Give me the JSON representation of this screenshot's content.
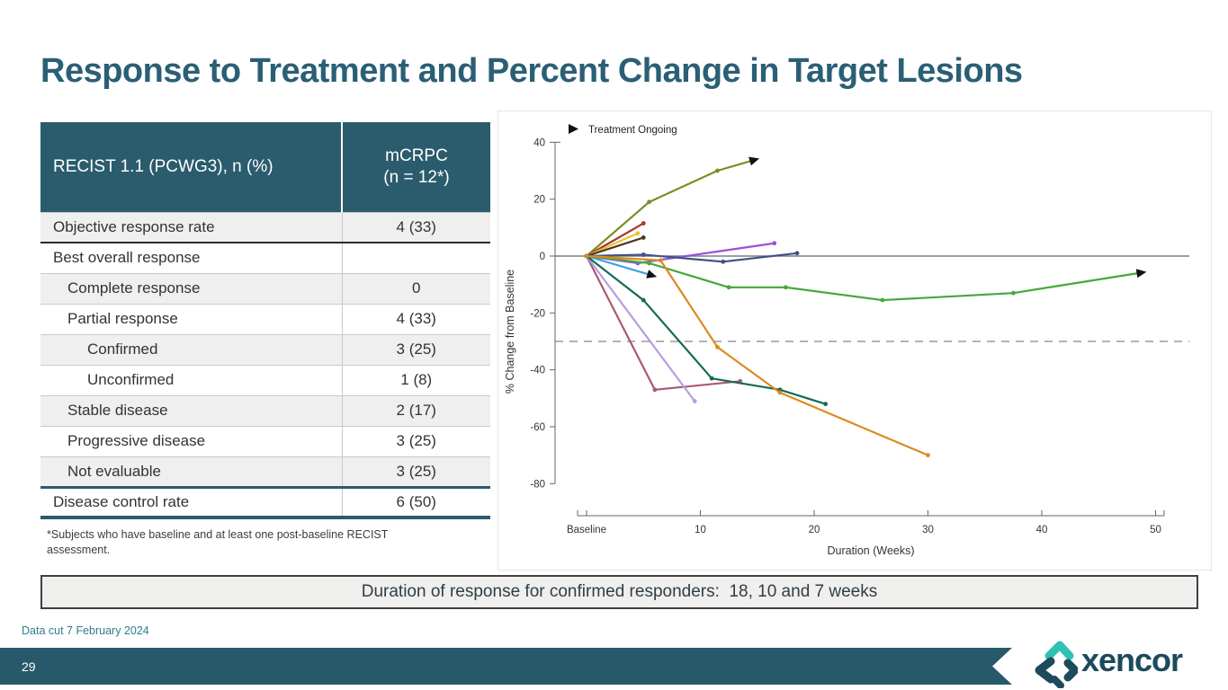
{
  "slide": {
    "title": "Response to Treatment and Percent Change in Target Lesions",
    "banner": "Duration of response for confirmed responders:  18, 10 and 7 weeks",
    "data_cut": "Data cut 7 February 2024",
    "page_number": "29",
    "logo_text": "xencor"
  },
  "table": {
    "header": {
      "col1": "RECIST 1.1 (PCWG3), n (%)",
      "col2_line1": "mCRPC",
      "col2_line2": "(n = 12*)"
    },
    "rows": [
      {
        "label": "Objective response rate",
        "value": "4 (33)",
        "indent": 0,
        "shaded": true,
        "sep": ""
      },
      {
        "label": "Best overall response",
        "value": "",
        "indent": 0,
        "shaded": false,
        "sep": "dark"
      },
      {
        "label": "Complete response",
        "value": "0",
        "indent": 1,
        "shaded": true,
        "sep": ""
      },
      {
        "label": "Partial response",
        "value": "4 (33)",
        "indent": 1,
        "shaded": false,
        "sep": ""
      },
      {
        "label": "Confirmed",
        "value": "3 (25)",
        "indent": 2,
        "shaded": true,
        "sep": ""
      },
      {
        "label": "Unconfirmed",
        "value": "1 (8)",
        "indent": 2,
        "shaded": false,
        "sep": ""
      },
      {
        "label": "Stable disease",
        "value": "2 (17)",
        "indent": 1,
        "shaded": true,
        "sep": ""
      },
      {
        "label": "Progressive disease",
        "value": "3 (25)",
        "indent": 1,
        "shaded": false,
        "sep": ""
      },
      {
        "label": "Not evaluable",
        "value": "3 (25)",
        "indent": 1,
        "shaded": true,
        "sep": ""
      },
      {
        "label": "Disease control rate",
        "value": "6 (50)",
        "indent": 0,
        "shaded": false,
        "sep": "teal"
      }
    ],
    "footnote": "*Subjects who have baseline and at least one post-baseline RECIST assessment."
  },
  "chart_data": {
    "type": "line",
    "title": "",
    "xlabel": "Duration (Weeks)",
    "ylabel": "% Change from Baseline",
    "xlim": [
      0,
      52
    ],
    "ylim": [
      -80,
      40
    ],
    "grid": false,
    "legend": [
      {
        "label": "Treatment Ongoing",
        "marker": "black-right-arrow"
      }
    ],
    "x_ticks": [
      {
        "label": "Baseline",
        "week": 0
      },
      {
        "label": "10",
        "week": 10
      },
      {
        "label": "20",
        "week": 20
      },
      {
        "label": "30",
        "week": 30
      },
      {
        "label": "40",
        "week": 40
      },
      {
        "label": "50",
        "week": 50
      }
    ],
    "y_ticks": [
      40,
      20,
      0,
      -20,
      -40,
      -60,
      -80
    ],
    "reference_lines": [
      {
        "y": 0,
        "style": "solid",
        "color": "#7f7f7f"
      },
      {
        "y": -30,
        "style": "dashed",
        "color": "#9a9a9a"
      }
    ],
    "series": [
      {
        "name": "subject-olive",
        "color": "#7d8c21",
        "ongoing": true,
        "points": [
          [
            0,
            0
          ],
          [
            5.5,
            19
          ],
          [
            11.5,
            30
          ],
          [
            14.5,
            33.5
          ]
        ]
      },
      {
        "name": "subject-darkred",
        "color": "#a8352e",
        "ongoing": false,
        "points": [
          [
            0,
            0
          ],
          [
            5,
            11.5
          ]
        ]
      },
      {
        "name": "subject-yellow",
        "color": "#e8c430",
        "ongoing": false,
        "points": [
          [
            0,
            0
          ],
          [
            4.5,
            8
          ]
        ]
      },
      {
        "name": "subject-brown",
        "color": "#4a381f",
        "ongoing": false,
        "points": [
          [
            0,
            0
          ],
          [
            5,
            6.5
          ]
        ]
      },
      {
        "name": "subject-purple",
        "color": "#9a50d8",
        "ongoing": false,
        "points": [
          [
            0,
            0
          ],
          [
            4.5,
            -2.5
          ],
          [
            16.5,
            4.5
          ]
        ]
      },
      {
        "name": "subject-navy",
        "color": "#3f5286",
        "ongoing": false,
        "points": [
          [
            0,
            0
          ],
          [
            5,
            0.5
          ],
          [
            12,
            -2
          ],
          [
            18.5,
            1
          ]
        ]
      },
      {
        "name": "subject-skyblue",
        "color": "#3fa1e6",
        "ongoing": true,
        "points": [
          [
            0,
            0
          ],
          [
            5.5,
            -6.5
          ]
        ]
      },
      {
        "name": "subject-green",
        "color": "#46a73c",
        "ongoing": true,
        "points": [
          [
            0,
            0
          ],
          [
            5.5,
            -2.5
          ],
          [
            12.5,
            -11
          ],
          [
            17.5,
            -11
          ],
          [
            26,
            -15.5
          ],
          [
            37.5,
            -13
          ],
          [
            48.5,
            -6
          ]
        ]
      },
      {
        "name": "subject-rose",
        "color": "#a85a72",
        "ongoing": false,
        "points": [
          [
            0,
            0
          ],
          [
            6,
            -47
          ],
          [
            13.5,
            -44
          ]
        ]
      },
      {
        "name": "subject-plum",
        "color": "#b79ce0",
        "ongoing": false,
        "points": [
          [
            0,
            0
          ],
          [
            9.5,
            -51
          ]
        ]
      },
      {
        "name": "subject-teal",
        "color": "#156a58",
        "ongoing": false,
        "points": [
          [
            0,
            0
          ],
          [
            5,
            -15.5
          ],
          [
            11,
            -43
          ],
          [
            17,
            -47
          ],
          [
            21,
            -52
          ]
        ]
      },
      {
        "name": "subject-orange",
        "color": "#dd8a20",
        "ongoing": false,
        "points": [
          [
            0,
            0
          ],
          [
            6.5,
            -1.5
          ],
          [
            11.5,
            -32
          ],
          [
            17,
            -48
          ],
          [
            30,
            -70
          ]
        ]
      }
    ]
  }
}
